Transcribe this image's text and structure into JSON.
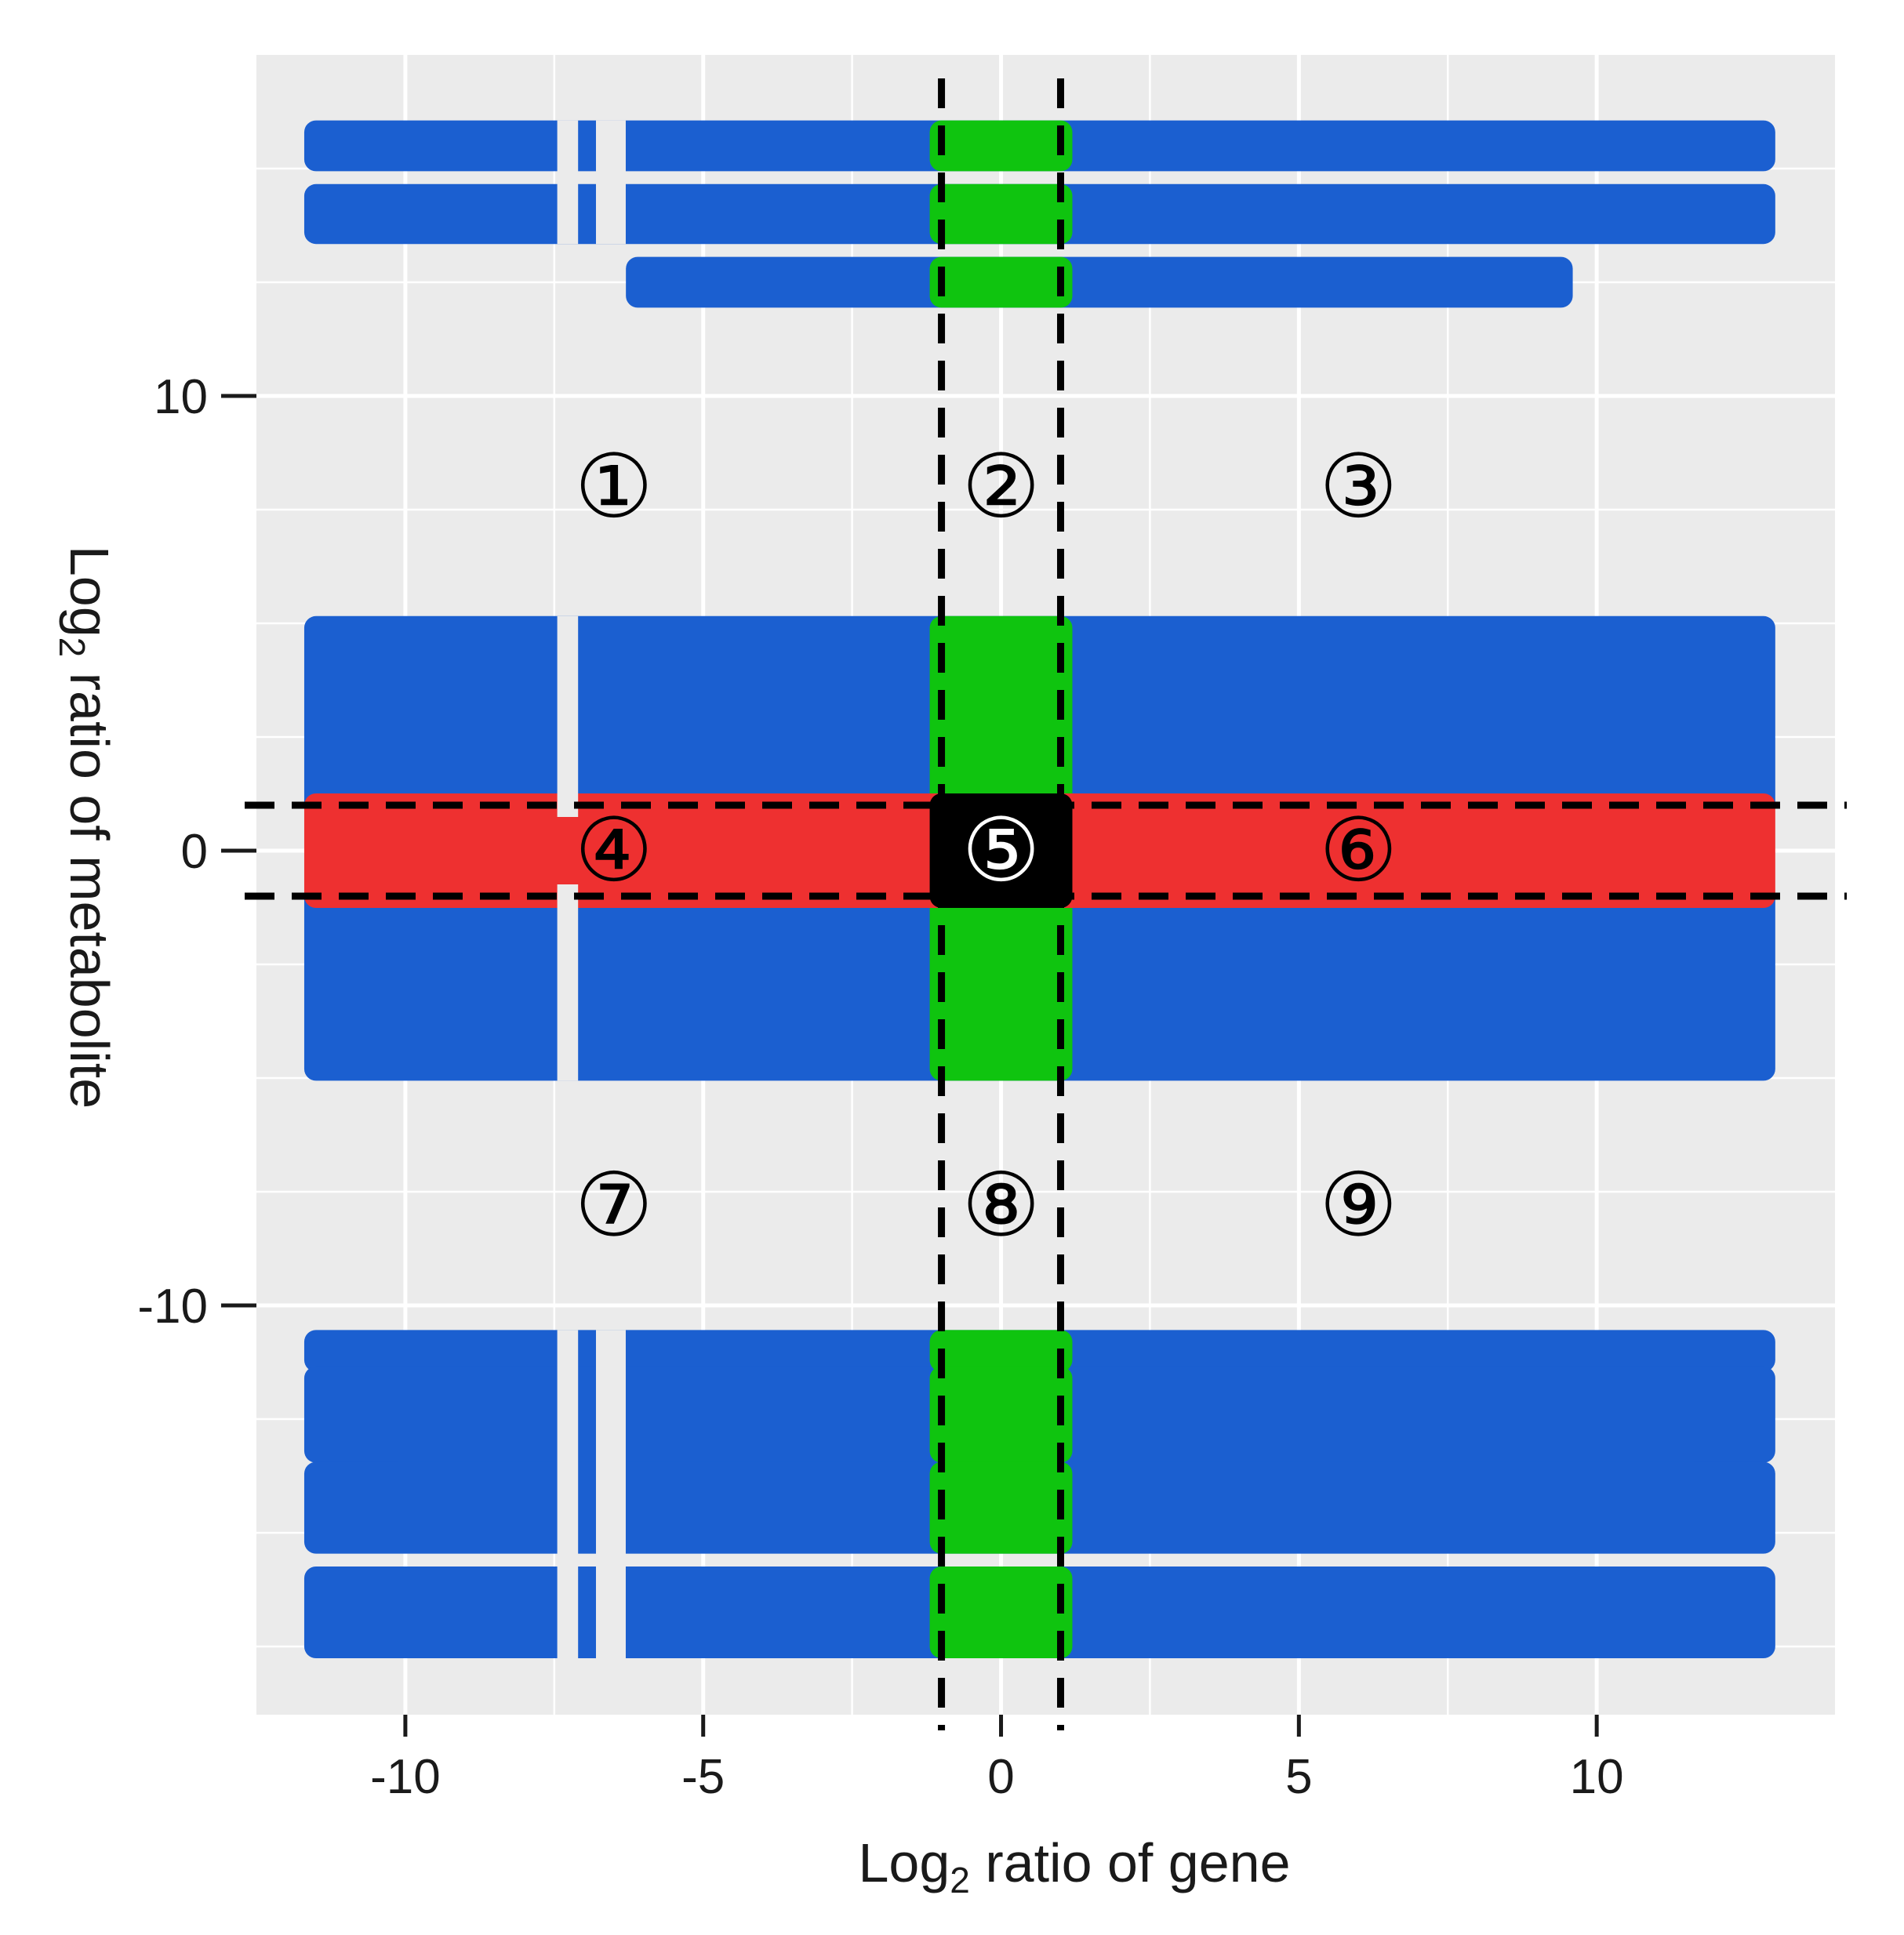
{
  "chart_data": {
    "type": "scatter",
    "xlabel_main": "Log",
    "xlabel_sub": "2",
    "xlabel_rest": " ratio of gene",
    "ylabel_main": "Log",
    "ylabel_sub": "2",
    "ylabel_rest": " ratio of metabolite",
    "xlim": [
      -12.5,
      14
    ],
    "ylim": [
      -19,
      17.5
    ],
    "x_ticks": [
      -10,
      -5,
      0,
      5,
      10
    ],
    "x_tick_labels": [
      "-10",
      "-5",
      "0",
      "5",
      "10"
    ],
    "y_ticks": [
      -10,
      0,
      10
    ],
    "y_tick_labels": [
      "-10",
      "0",
      "10"
    ],
    "grid": true,
    "thresholds": {
      "x": [
        -1,
        1
      ],
      "y": [
        -1,
        1
      ]
    },
    "colors": {
      "panel": "#ebebeb",
      "grid": "#ffffff",
      "blue": "#1b5fd0",
      "green": "#0fc40f",
      "red": "#ee3030",
      "black": "#000000"
    },
    "series": [
      {
        "color_key": "blue",
        "bands": [
          {
            "x": [
              -11.5,
              12.8
            ],
            "y": [
              15.2,
              15.8
            ]
          },
          {
            "x": [
              -11.5,
              12.8
            ],
            "y": [
              13.6,
              14.4
            ]
          },
          {
            "x": [
              -6.1,
              9.4
            ],
            "y": [
              12.2,
              12.8
            ]
          },
          {
            "x": [
              -11.5,
              12.8
            ],
            "y": [
              1.0,
              4.9
            ]
          },
          {
            "x": [
              -11.5,
              12.8
            ],
            "y": [
              -4.8,
              -1.0
            ]
          },
          {
            "x": [
              -11.5,
              12.8
            ],
            "y": [
              -11.2,
              -10.8
            ]
          },
          {
            "x": [
              -11.5,
              12.8
            ],
            "y": [
              -13.2,
              -11.6
            ]
          },
          {
            "x": [
              -11.5,
              12.8
            ],
            "y": [
              -15.2,
              -13.7
            ]
          },
          {
            "x": [
              -11.5,
              12.8
            ],
            "y": [
              -17.5,
              -16.0
            ]
          }
        ]
      },
      {
        "color_key": "green",
        "bands": [
          {
            "x": [
              -1,
              1
            ],
            "y": [
              15.2,
              15.8
            ]
          },
          {
            "x": [
              -1,
              1
            ],
            "y": [
              13.6,
              14.4
            ]
          },
          {
            "x": [
              -1,
              1
            ],
            "y": [
              12.2,
              12.8
            ]
          },
          {
            "x": [
              -1,
              1
            ],
            "y": [
              1.0,
              4.9
            ]
          },
          {
            "x": [
              -1,
              1
            ],
            "y": [
              -4.8,
              -1.0
            ]
          },
          {
            "x": [
              -1,
              1
            ],
            "y": [
              -11.2,
              -10.8
            ]
          },
          {
            "x": [
              -1,
              1
            ],
            "y": [
              -13.2,
              -11.6
            ]
          },
          {
            "x": [
              -1,
              1
            ],
            "y": [
              -15.2,
              -13.7
            ]
          },
          {
            "x": [
              -1,
              1
            ],
            "y": [
              -17.5,
              -16.0
            ]
          }
        ]
      },
      {
        "color_key": "red",
        "bands": [
          {
            "x": [
              -11.5,
              -1
            ],
            "y": [
              -1,
              1
            ]
          },
          {
            "x": [
              1,
              12.8
            ],
            "y": [
              -1,
              1
            ]
          }
        ]
      },
      {
        "color_key": "black",
        "bands": [
          {
            "x": [
              -1,
              1
            ],
            "y": [
              -1,
              1
            ]
          }
        ]
      }
    ],
    "gaps": [
      {
        "x": [
          -7.45,
          -7.1
        ],
        "y_ranges": [
          [
            1.0,
            4.9
          ],
          [
            -4.8,
            -1.0
          ],
          [
            -17.5,
            -10.8
          ],
          [
            13.6,
            15.8
          ]
        ]
      },
      {
        "x": [
          -6.8,
          -6.3
        ],
        "y_ranges": [
          [
            -17.5,
            -10.8
          ],
          [
            13.6,
            15.8
          ]
        ]
      }
    ],
    "region_labels": [
      {
        "text": "①",
        "x": -6.5,
        "y": 8
      },
      {
        "text": "②",
        "x": 0,
        "y": 8
      },
      {
        "text": "③",
        "x": 6,
        "y": 8
      },
      {
        "text": "④",
        "x": -6.5,
        "y": 0
      },
      {
        "text": "⑤",
        "x": 0,
        "y": 0,
        "inverse": true
      },
      {
        "text": "⑥",
        "x": 6,
        "y": 0
      },
      {
        "text": "⑦",
        "x": -6.5,
        "y": -7.8
      },
      {
        "text": "⑧",
        "x": 0,
        "y": -7.8
      },
      {
        "text": "⑨",
        "x": 6,
        "y": -7.8
      }
    ]
  }
}
